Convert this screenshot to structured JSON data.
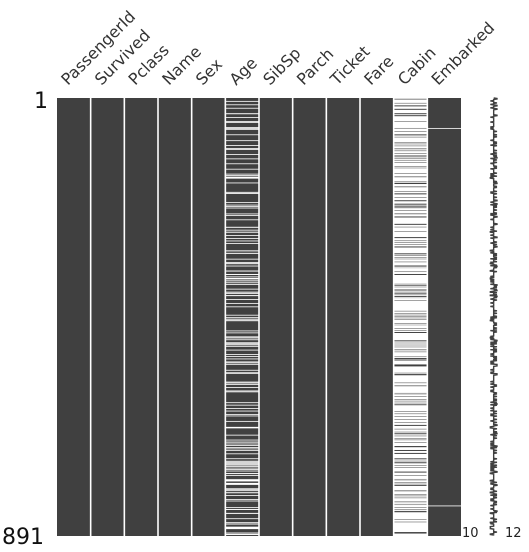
{
  "chart_data": {
    "type": "heatmap",
    "columns": [
      "PassengerId",
      "Survived",
      "Pclass",
      "Name",
      "Sex",
      "Age",
      "SibSp",
      "Parch",
      "Ticket",
      "Fare",
      "Cabin",
      "Embarked"
    ],
    "n_rows": 891,
    "row_labels": {
      "top": "1",
      "bottom": "891"
    },
    "missing_counts": [
      0,
      0,
      0,
      0,
      0,
      177,
      0,
      0,
      0,
      0,
      687,
      2
    ],
    "sparkline": {
      "min_label": "10",
      "max_label": "12",
      "min": 10,
      "max": 12
    },
    "colors": {
      "present": "#404040",
      "missing": "#ffffff"
    }
  }
}
